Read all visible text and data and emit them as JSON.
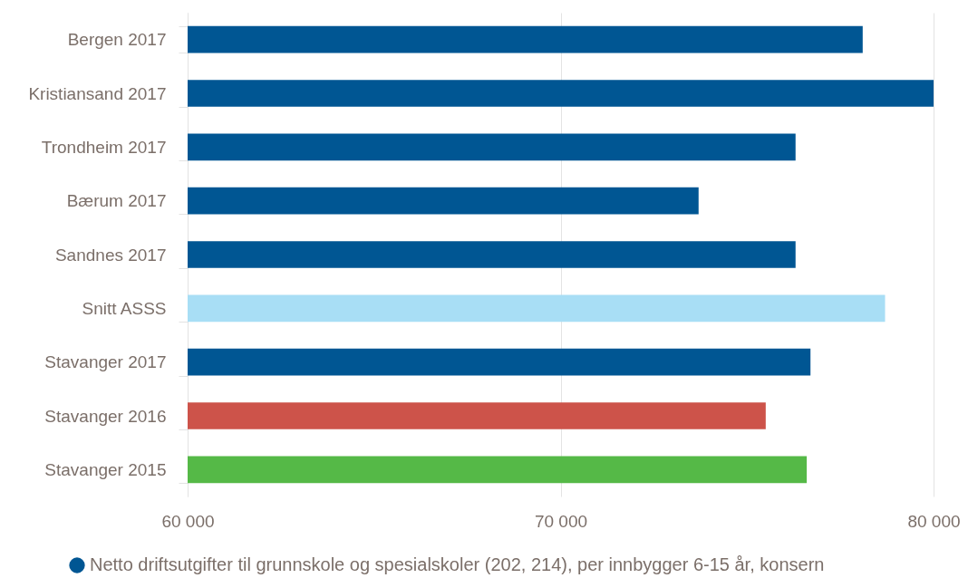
{
  "chart_data": {
    "type": "bar",
    "orientation": "horizontal",
    "categories": [
      "Bergen 2017",
      "Kristiansand 2017",
      "Trondheim 2017",
      "Bærum 2017",
      "Sandnes 2017",
      "Snitt ASSS",
      "Stavanger 2017",
      "Stavanger 2016",
      "Stavanger 2015"
    ],
    "series": [
      {
        "name": "Netto driftsutgifter til grunnskole og spesialskoler (202, 214), per innbygger 6-15 år, konsern",
        "color": "#005693",
        "colors": [
          "#005693",
          "#005693",
          "#005693",
          "#005693",
          "#005693",
          "#a8def5",
          "#005693",
          "#cd534a",
          "#55b947"
        ],
        "values": [
          78100,
          80000,
          76300,
          73700,
          76300,
          78700,
          76700,
          75500,
          76600
        ]
      }
    ],
    "xlim": [
      60000,
      80000
    ],
    "xticks": [
      {
        "value": 60000,
        "label": "60 000"
      },
      {
        "value": 70000,
        "label": "70 000"
      },
      {
        "value": 80000,
        "label": "80 000"
      }
    ],
    "grid": "x",
    "legend": "bottom"
  }
}
